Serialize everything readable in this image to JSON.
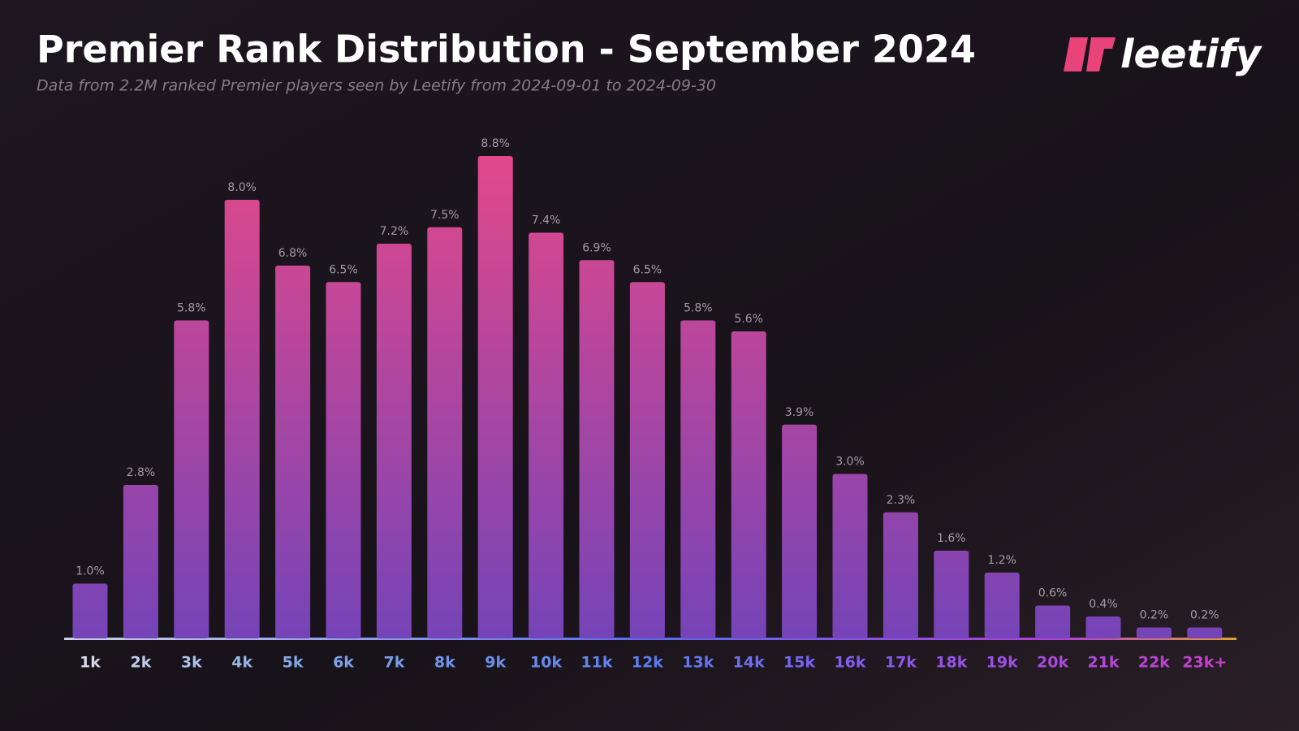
{
  "brand": "leetify",
  "chart_data": {
    "type": "bar",
    "title": "Premier Rank Distribution - September 2024",
    "subtitle": "Data from 2.2M ranked Premier players seen by Leetify from 2024-09-01 to 2024-09-30",
    "categories": [
      "1k",
      "2k",
      "3k",
      "4k",
      "5k",
      "6k",
      "7k",
      "8k",
      "9k",
      "10k",
      "11k",
      "12k",
      "13k",
      "14k",
      "15k",
      "16k",
      "17k",
      "18k",
      "19k",
      "20k",
      "21k",
      "22k",
      "23k+"
    ],
    "values": [
      1.0,
      2.8,
      5.8,
      8.0,
      6.8,
      6.5,
      7.2,
      7.5,
      8.8,
      7.4,
      6.9,
      6.5,
      5.8,
      5.6,
      3.9,
      3.0,
      2.3,
      1.6,
      1.2,
      0.6,
      0.4,
      0.2,
      0.2
    ],
    "value_labels": [
      "1.0%",
      "2.8%",
      "5.8%",
      "8.0%",
      "6.8%",
      "6.5%",
      "7.2%",
      "7.5%",
      "8.8%",
      "7.4%",
      "6.9%",
      "6.5%",
      "5.8%",
      "5.6%",
      "3.9%",
      "3.0%",
      "2.3%",
      "1.6%",
      "1.2%",
      "0.6%",
      "0.4%",
      "0.2%",
      "0.2%"
    ]
  }
}
